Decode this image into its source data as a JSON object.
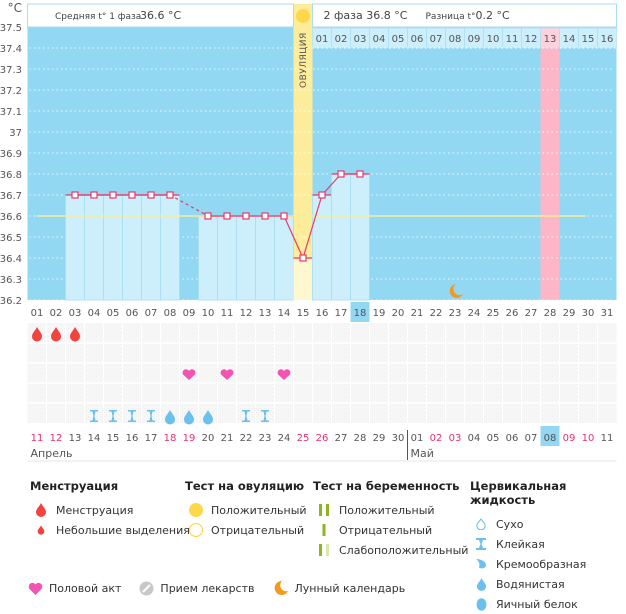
{
  "header": {
    "unit": "°C",
    "phase1_label": "Средняя t° 1 фаза",
    "phase1_value": "36.6 °C",
    "phase2_label": "2 фаза",
    "phase2_value": "36.8 °C",
    "diff_label": "Разница t°",
    "diff_value": "0.2 °C",
    "ovulation_label": "ОВУЛЯЦИЯ"
  },
  "colors": {
    "chart_bg": "#92d8f2",
    "bar_fill": "#cdeefb",
    "ovulation_col": "#fdec9a",
    "highlight_col": "#fdb6c8",
    "line": "#e83a6a",
    "coverline": "#f5ee9a",
    "weekend": "#e8336a",
    "sun": "#fdd84a",
    "moon": "#f39a1e",
    "drop": "#f2433f",
    "heart": "#f354b4",
    "fluid": "#6cc0ee"
  },
  "chart_data": {
    "type": "line",
    "title": "",
    "ylabel": "°C",
    "ylim": [
      36.2,
      37.5
    ],
    "yticks": [
      "37.5",
      "37.4",
      "37.3",
      "37.2",
      "37.1",
      "37",
      "36.9",
      "36.8",
      "36.7",
      "36.6",
      "36.5",
      "36.4",
      "36.3",
      "36.2"
    ],
    "cycle_days": [
      "01",
      "02",
      "03",
      "04",
      "05",
      "06",
      "07",
      "08",
      "09",
      "10",
      "11",
      "12",
      "13",
      "14",
      "15",
      "16",
      "17",
      "18",
      "19",
      "20",
      "21",
      "22",
      "23",
      "24",
      "25",
      "26",
      "27",
      "28",
      "29",
      "30",
      "31"
    ],
    "calendar_dates": [
      "11",
      "12",
      "13",
      "14",
      "15",
      "16",
      "17",
      "18",
      "19",
      "20",
      "21",
      "22",
      "23",
      "24",
      "25",
      "26",
      "27",
      "28",
      "29",
      "30",
      "01",
      "02",
      "03",
      "04",
      "05",
      "06",
      "07",
      "08",
      "09",
      "10",
      "11"
    ],
    "weekend_dates_index": [
      1,
      2,
      8,
      9,
      15,
      16,
      22,
      23,
      29,
      30
    ],
    "today_index": 18,
    "months": [
      {
        "label": "Апрель",
        "start_index": 1
      },
      {
        "label": "Май",
        "start_index": 21
      }
    ],
    "phase2_days": [
      "01",
      "02",
      "03",
      "04",
      "05",
      "06",
      "07",
      "08",
      "09",
      "10",
      "11",
      "12",
      "13",
      "14",
      "15",
      "16"
    ],
    "highlight_phase2_day": "13",
    "highlight_cycle_day": 28,
    "ovulation_day": 15,
    "coverline": 36.6,
    "series": [
      {
        "name": "Температура",
        "points": [
          {
            "day": 3,
            "value": 36.7
          },
          {
            "day": 4,
            "value": 36.7
          },
          {
            "day": 5,
            "value": 36.7
          },
          {
            "day": 6,
            "value": 36.7
          },
          {
            "day": 7,
            "value": 36.7
          },
          {
            "day": 8,
            "value": 36.7
          },
          {
            "day": 10,
            "value": 36.6
          },
          {
            "day": 11,
            "value": 36.6
          },
          {
            "day": 12,
            "value": 36.6
          },
          {
            "day": 13,
            "value": 36.6
          },
          {
            "day": 14,
            "value": 36.6
          },
          {
            "day": 15,
            "value": 36.4
          },
          {
            "day": 16,
            "value": 36.7
          },
          {
            "day": 17,
            "value": 36.8
          },
          {
            "day": 18,
            "value": 36.8
          }
        ]
      }
    ],
    "gap_between": [
      8,
      10
    ],
    "moon_day": 23,
    "menstruation_days": [
      1,
      2,
      3
    ],
    "intercourse_days": [
      9,
      11,
      14
    ],
    "fluid": [
      {
        "day": 4,
        "type": "sticky"
      },
      {
        "day": 5,
        "type": "sticky"
      },
      {
        "day": 6,
        "type": "sticky"
      },
      {
        "day": 7,
        "type": "sticky"
      },
      {
        "day": 8,
        "type": "watery"
      },
      {
        "day": 9,
        "type": "watery"
      },
      {
        "day": 10,
        "type": "watery"
      },
      {
        "day": 12,
        "type": "sticky"
      },
      {
        "day": 13,
        "type": "sticky"
      }
    ]
  },
  "legend": {
    "menstruation": {
      "title": "Менструация",
      "items": [
        "Менструация",
        "Небольшие выделения"
      ]
    },
    "ovulation_test": {
      "title": "Тест на овуляцию",
      "items": [
        "Положительный",
        "Отрицательный"
      ]
    },
    "pregnancy_test": {
      "title": "Тест на беременность",
      "items": [
        "Положительный",
        "Отрицательный",
        "Слабоположительный"
      ]
    },
    "cervical_fluid": {
      "title": "Цервикальная жидкость",
      "items": [
        "Сухо",
        "Клейкая",
        "Кремообразная",
        "Водянистая",
        "Яичный белок"
      ]
    },
    "other": [
      "Половой акт",
      "Прием лекарств",
      "Лунный календарь"
    ]
  }
}
